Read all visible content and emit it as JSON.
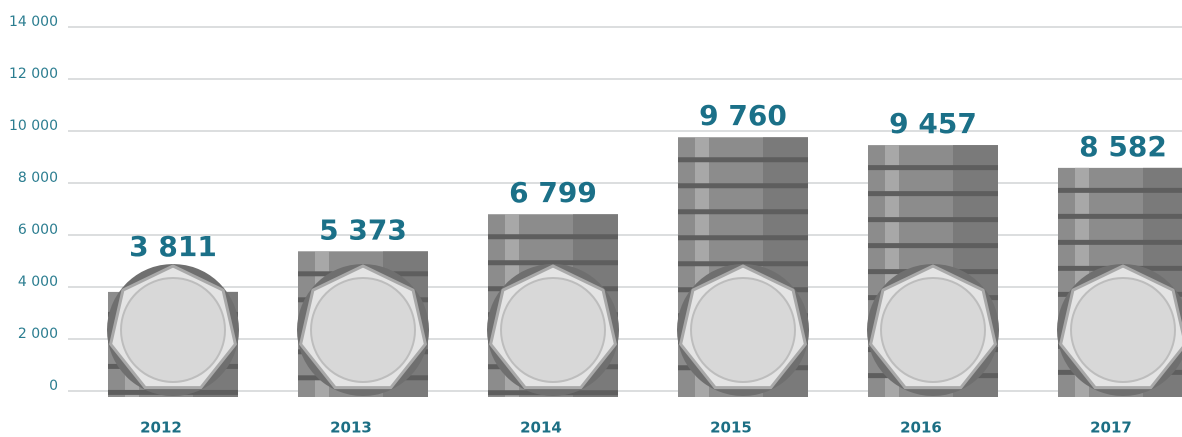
{
  "chart_data": {
    "type": "bar",
    "categories": [
      "2012",
      "2013",
      "2014",
      "2015",
      "2016",
      "2017"
    ],
    "values": [
      3811,
      5373,
      6799,
      9760,
      9457,
      8582
    ],
    "value_labels": [
      "3 811",
      "5 373",
      "6 799",
      "9 760",
      "9 457",
      "8 582"
    ],
    "color": "#8c8c8c",
    "ylim": [
      0,
      14000
    ],
    "yticks": [
      0,
      {
        "value": 2000,
        "label": "2 000"
      },
      {
        "value": 4000,
        "label": "4 000"
      },
      {
        "value": 6000,
        "label": "6 000"
      },
      {
        "value": 8000,
        "label": "8 000"
      },
      {
        "value": 10000,
        "label": "10 000"
      },
      {
        "value": 12000,
        "label": "12 000"
      },
      {
        "value": 14000,
        "label": "14 000"
      }
    ],
    "grid": true
  }
}
